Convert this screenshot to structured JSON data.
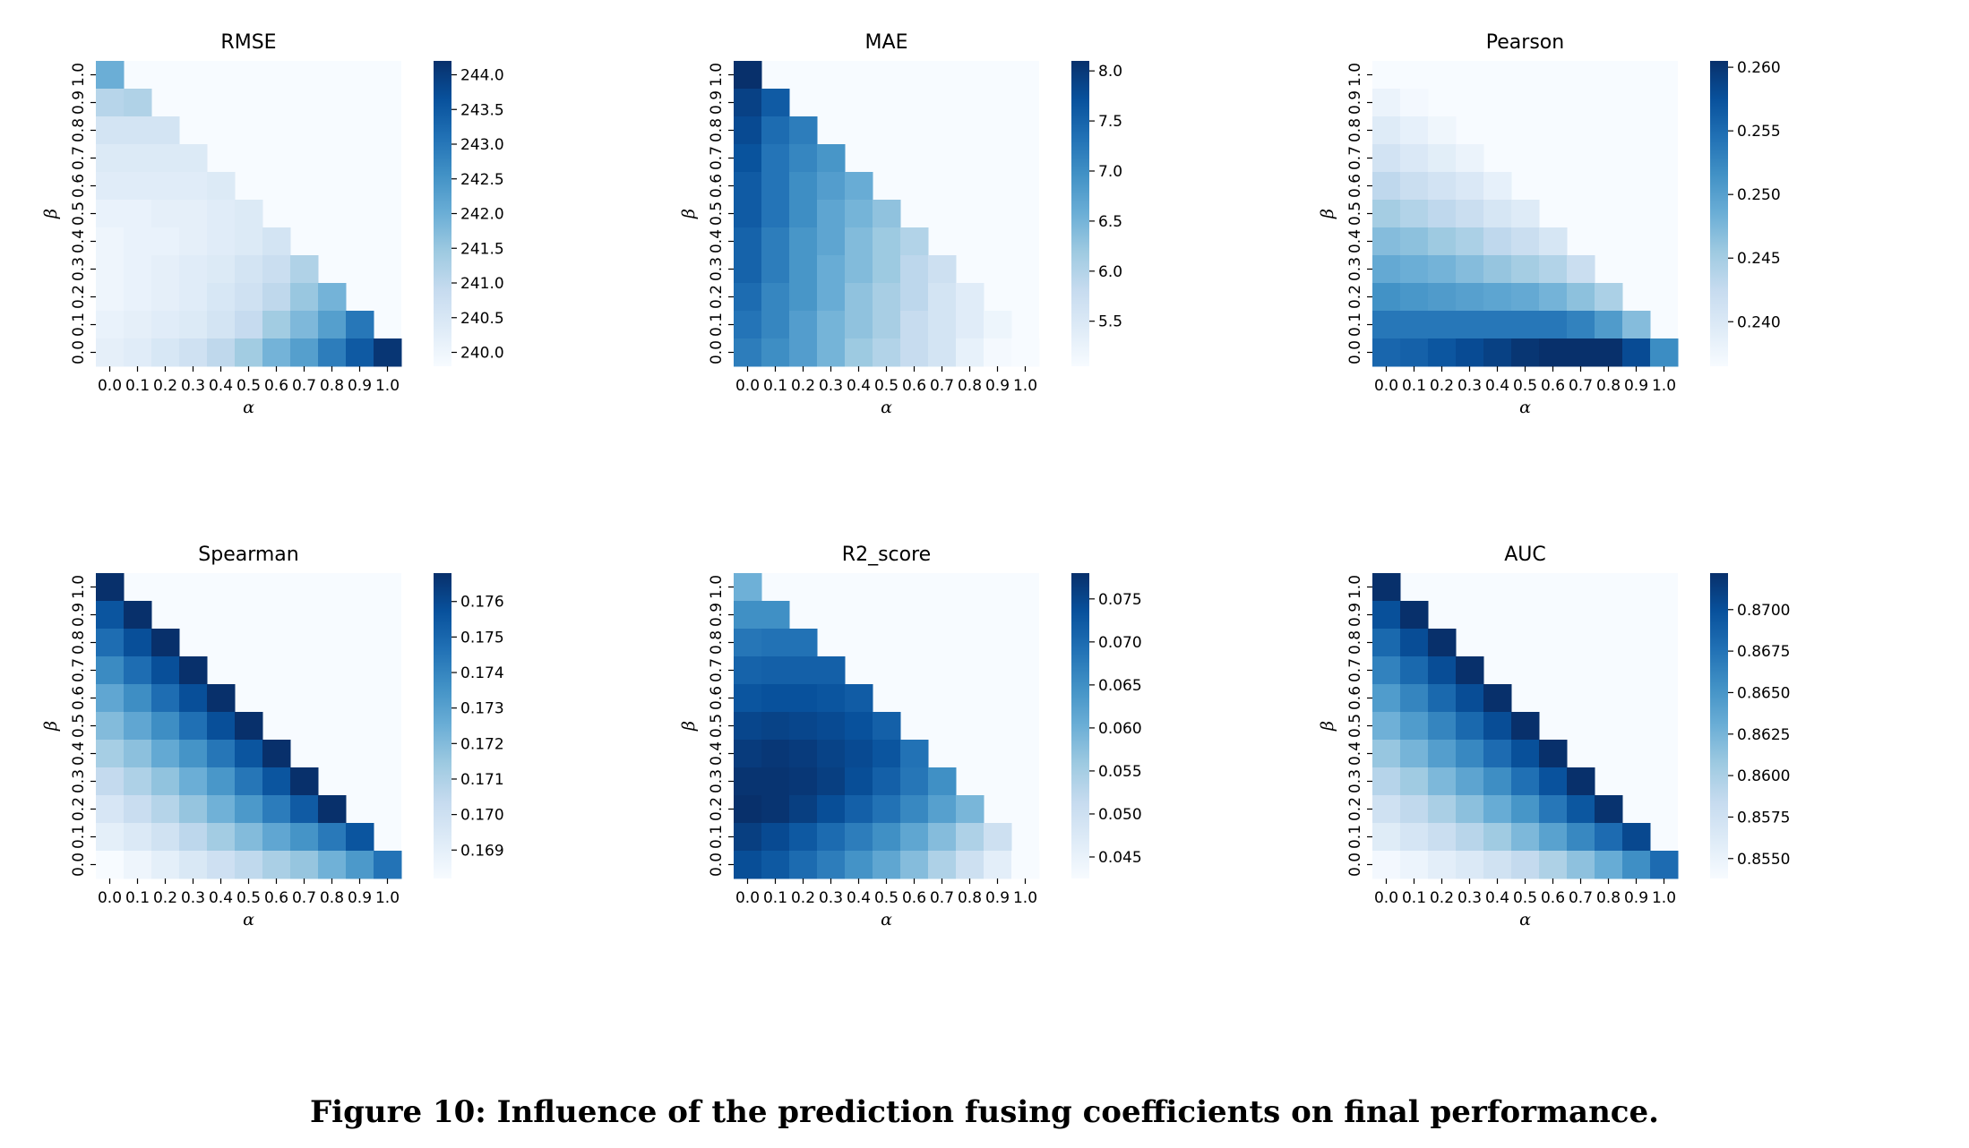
{
  "caption": "Figure 10: Influence of the prediction fusing coefficients on final performance.",
  "colors": {
    "map": [
      "#f7fbff",
      "#deebf7",
      "#c6dbef",
      "#9ecae1",
      "#6baed6",
      "#4292c6",
      "#2171b5",
      "#08519c",
      "#08306b"
    ],
    "empty": "#f7fbff"
  },
  "chart_data": [
    {
      "type": "heatmap",
      "title": "RMSE",
      "xlabel": "α",
      "ylabel": "β",
      "x": [
        "0.0",
        "0.1",
        "0.2",
        "0.3",
        "0.4",
        "0.5",
        "0.6",
        "0.7",
        "0.8",
        "0.9",
        "1.0"
      ],
      "y": [
        "1.0",
        "0.9",
        "0.8",
        "0.7",
        "0.6",
        "0.5",
        "0.4",
        "0.3",
        "0.2",
        "0.1",
        "0.0"
      ],
      "vmin": 239.8,
      "vmax": 244.2,
      "colorbar_ticks": [
        "244.0",
        "243.5",
        "243.0",
        "242.5",
        "242.0",
        "241.5",
        "241.0",
        "240.5",
        "240.0"
      ],
      "values": [
        [
          242.0
        ],
        [
          241.1,
          241.2
        ],
        [
          240.6,
          240.6,
          240.6
        ],
        [
          240.4,
          240.4,
          240.4,
          240.4
        ],
        [
          240.3,
          240.3,
          240.3,
          240.3,
          240.4
        ],
        [
          240.1,
          240.1,
          240.2,
          240.2,
          240.3,
          240.4
        ],
        [
          240.0,
          240.1,
          240.1,
          240.2,
          240.3,
          240.4,
          240.6
        ],
        [
          240.0,
          240.1,
          240.2,
          240.3,
          240.4,
          240.6,
          240.8,
          241.2
        ],
        [
          240.0,
          240.1,
          240.2,
          240.3,
          240.5,
          240.7,
          241.0,
          241.5,
          241.9
        ],
        [
          240.1,
          240.2,
          240.3,
          240.4,
          240.6,
          240.9,
          241.4,
          241.8,
          242.3,
          243.0
        ],
        [
          240.2,
          240.3,
          240.5,
          240.7,
          241.0,
          241.4,
          241.9,
          242.3,
          242.9,
          243.5,
          244.1
        ]
      ]
    },
    {
      "type": "heatmap",
      "title": "MAE",
      "xlabel": "α",
      "ylabel": "β",
      "x": [
        "0.0",
        "0.1",
        "0.2",
        "0.3",
        "0.4",
        "0.5",
        "0.6",
        "0.7",
        "0.8",
        "0.9",
        "1.0"
      ],
      "y": [
        "1.0",
        "0.9",
        "0.8",
        "0.7",
        "0.6",
        "0.5",
        "0.4",
        "0.3",
        "0.2",
        "0.1",
        "0.0"
      ],
      "vmin": 5.05,
      "vmax": 8.1,
      "colorbar_ticks": [
        "8.0",
        "7.5",
        "7.0",
        "6.5",
        "6.0",
        "5.5"
      ],
      "values": [
        [
          8.1
        ],
        [
          7.9,
          7.6
        ],
        [
          7.8,
          7.4,
          7.2
        ],
        [
          7.7,
          7.3,
          7.1,
          6.9
        ],
        [
          7.6,
          7.3,
          7.0,
          6.8,
          6.6
        ],
        [
          7.6,
          7.3,
          7.0,
          6.7,
          6.5,
          6.3
        ],
        [
          7.5,
          7.2,
          6.9,
          6.7,
          6.4,
          6.2,
          6.0
        ],
        [
          7.5,
          7.2,
          6.9,
          6.6,
          6.4,
          6.2,
          5.9,
          5.7
        ],
        [
          7.4,
          7.1,
          6.9,
          6.6,
          6.3,
          6.1,
          5.9,
          5.6,
          5.4
        ],
        [
          7.3,
          7.1,
          6.8,
          6.5,
          6.3,
          6.1,
          5.8,
          5.6,
          5.4,
          5.2
        ],
        [
          7.2,
          7.0,
          6.8,
          6.5,
          6.2,
          6.0,
          5.8,
          5.6,
          5.3,
          5.1,
          5.0
        ]
      ]
    },
    {
      "type": "heatmap",
      "title": "Pearson",
      "xlabel": "α",
      "ylabel": "β",
      "x": [
        "0.0",
        "0.1",
        "0.2",
        "0.3",
        "0.4",
        "0.5",
        "0.6",
        "0.7",
        "0.8",
        "0.9",
        "1.0"
      ],
      "y": [
        "1.0",
        "0.9",
        "0.8",
        "0.7",
        "0.6",
        "0.5",
        "0.4",
        "0.3",
        "0.2",
        "0.1",
        "0.0"
      ],
      "vmin": 0.2365,
      "vmax": 0.2605,
      "colorbar_ticks": [
        "0.260",
        "0.255",
        "0.250",
        "0.245",
        "0.240"
      ],
      "values": [
        [
          0.2365
        ],
        [
          0.238,
          0.237
        ],
        [
          0.2395,
          0.2385,
          0.2375
        ],
        [
          0.241,
          0.24,
          0.239,
          0.238
        ],
        [
          0.243,
          0.242,
          0.241,
          0.24,
          0.2385
        ],
        [
          0.245,
          0.244,
          0.243,
          0.242,
          0.2405,
          0.2395
        ],
        [
          0.247,
          0.2465,
          0.2455,
          0.2445,
          0.243,
          0.242,
          0.2405
        ],
        [
          0.249,
          0.2485,
          0.248,
          0.247,
          0.246,
          0.245,
          0.244,
          0.242
        ],
        [
          0.2515,
          0.251,
          0.2505,
          0.25,
          0.2495,
          0.249,
          0.248,
          0.2465,
          0.2445
        ],
        [
          0.254,
          0.254,
          0.254,
          0.254,
          0.254,
          0.254,
          0.254,
          0.253,
          0.2505,
          0.247
        ],
        [
          0.2555,
          0.256,
          0.257,
          0.258,
          0.259,
          0.26,
          0.2605,
          0.2605,
          0.2605,
          0.258,
          0.252
        ]
      ]
    },
    {
      "type": "heatmap",
      "title": "Spearman",
      "xlabel": "α",
      "ylabel": "β",
      "x": [
        "0.0",
        "0.1",
        "0.2",
        "0.3",
        "0.4",
        "0.5",
        "0.6",
        "0.7",
        "0.8",
        "0.9",
        "1.0"
      ],
      "y": [
        "1.0",
        "0.9",
        "0.8",
        "0.7",
        "0.6",
        "0.5",
        "0.4",
        "0.3",
        "0.2",
        "0.1",
        "0.0"
      ],
      "vmin": 0.1682,
      "vmax": 0.1768,
      "colorbar_ticks": [
        "0.176",
        "0.175",
        "0.174",
        "0.173",
        "0.172",
        "0.171",
        "0.170",
        "0.169"
      ],
      "values": [
        [
          0.1768
        ],
        [
          0.1756,
          0.1768
        ],
        [
          0.1748,
          0.1758,
          0.1768
        ],
        [
          0.1738,
          0.1748,
          0.1758,
          0.1768
        ],
        [
          0.1728,
          0.1737,
          0.1748,
          0.1758,
          0.1768
        ],
        [
          0.172,
          0.1728,
          0.1737,
          0.1747,
          0.1758,
          0.1768
        ],
        [
          0.1712,
          0.1718,
          0.1727,
          0.1735,
          0.1745,
          0.1756,
          0.1768
        ],
        [
          0.1704,
          0.171,
          0.1717,
          0.1725,
          0.1734,
          0.1745,
          0.1756,
          0.1768
        ],
        [
          0.1696,
          0.1702,
          0.1708,
          0.1716,
          0.1724,
          0.1733,
          0.1743,
          0.1754,
          0.1768
        ],
        [
          0.169,
          0.1694,
          0.1699,
          0.1706,
          0.1713,
          0.172,
          0.1728,
          0.1735,
          0.1744,
          0.1756
        ],
        [
          0.1682,
          0.1686,
          0.169,
          0.1695,
          0.17,
          0.1705,
          0.1711,
          0.1716,
          0.1724,
          0.1733,
          0.1746
        ]
      ]
    },
    {
      "type": "heatmap",
      "title": "R2_score",
      "xlabel": "α",
      "ylabel": "β",
      "x": [
        "0.0",
        "0.1",
        "0.2",
        "0.3",
        "0.4",
        "0.5",
        "0.6",
        "0.7",
        "0.8",
        "0.9",
        "1.0"
      ],
      "y": [
        "1.0",
        "0.9",
        "0.8",
        "0.7",
        "0.6",
        "0.5",
        "0.4",
        "0.3",
        "0.2",
        "0.1",
        "0.0"
      ],
      "vmin": 0.0425,
      "vmax": 0.078,
      "colorbar_ticks": [
        "0.075",
        "0.070",
        "0.065",
        "0.060",
        "0.055",
        "0.050",
        "0.045"
      ],
      "values": [
        [
          0.06
        ],
        [
          0.065,
          0.065
        ],
        [
          0.0685,
          0.069,
          0.069
        ],
        [
          0.071,
          0.0715,
          0.0715,
          0.0715
        ],
        [
          0.073,
          0.0735,
          0.0735,
          0.073,
          0.072
        ],
        [
          0.075,
          0.0755,
          0.075,
          0.0745,
          0.0735,
          0.0715
        ],
        [
          0.0765,
          0.077,
          0.0765,
          0.0755,
          0.0745,
          0.073,
          0.069
        ],
        [
          0.0775,
          0.0775,
          0.077,
          0.076,
          0.074,
          0.0715,
          0.0685,
          0.065
        ],
        [
          0.078,
          0.0775,
          0.076,
          0.074,
          0.0715,
          0.069,
          0.066,
          0.0625,
          0.059
        ],
        [
          0.076,
          0.0745,
          0.0725,
          0.07,
          0.0675,
          0.065,
          0.0615,
          0.058,
          0.054,
          0.05
        ],
        [
          0.074,
          0.0725,
          0.07,
          0.0675,
          0.0645,
          0.0615,
          0.058,
          0.054,
          0.05,
          0.046,
          0.0425
        ]
      ]
    },
    {
      "type": "heatmap",
      "title": "AUC",
      "xlabel": "α",
      "ylabel": "β",
      "x": [
        "0.0",
        "0.1",
        "0.2",
        "0.3",
        "0.4",
        "0.5",
        "0.6",
        "0.7",
        "0.8",
        "0.9",
        "1.0"
      ],
      "y": [
        "1.0",
        "0.9",
        "0.8",
        "0.7",
        "0.6",
        "0.5",
        "0.4",
        "0.3",
        "0.2",
        "0.1",
        "0.0"
      ],
      "vmin": 0.8538,
      "vmax": 0.8722,
      "colorbar_ticks": [
        "0.8700",
        "0.8675",
        "0.8650",
        "0.8625",
        "0.8600",
        "0.8575",
        "0.8550"
      ],
      "values": [
        [
          0.8722
        ],
        [
          0.87,
          0.8722
        ],
        [
          0.8682,
          0.8702,
          0.8722
        ],
        [
          0.8664,
          0.8682,
          0.8702,
          0.8722
        ],
        [
          0.8645,
          0.8662,
          0.8682,
          0.8702,
          0.8722
        ],
        [
          0.8628,
          0.8645,
          0.8662,
          0.8682,
          0.8702,
          0.8722
        ],
        [
          0.861,
          0.8625,
          0.8643,
          0.866,
          0.868,
          0.87,
          0.8722
        ],
        [
          0.8593,
          0.8606,
          0.8622,
          0.8638,
          0.8656,
          0.8677,
          0.8698,
          0.8722
        ],
        [
          0.8575,
          0.8587,
          0.86,
          0.8615,
          0.8632,
          0.865,
          0.8672,
          0.8695,
          0.872
        ],
        [
          0.856,
          0.857,
          0.858,
          0.8592,
          0.8606,
          0.8622,
          0.864,
          0.866,
          0.868,
          0.8705
        ],
        [
          0.8542,
          0.8548,
          0.8556,
          0.8564,
          0.8574,
          0.8585,
          0.8598,
          0.8614,
          0.8632,
          0.8655,
          0.868
        ]
      ]
    }
  ]
}
